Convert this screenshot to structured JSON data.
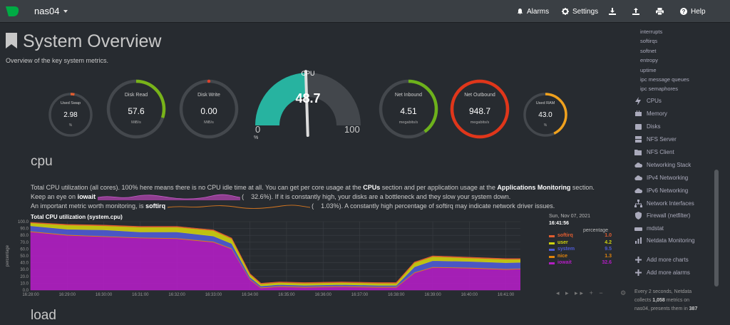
{
  "navbar": {
    "host": "nas04",
    "buttons": [
      {
        "label": "Alarms",
        "icon": "bell-icon"
      },
      {
        "label": "Settings",
        "icon": "gear-icon"
      },
      {
        "label": "",
        "icon": "download-icon"
      },
      {
        "label": "",
        "icon": "upload-icon"
      },
      {
        "label": "",
        "icon": "print-icon"
      },
      {
        "label": "Help",
        "icon": "question-icon"
      }
    ]
  },
  "header": {
    "title": "System Overview",
    "subtitle": "Overview of the key system metrics."
  },
  "gauges": [
    {
      "name": "used-swap",
      "title": "Used Swap",
      "value": "2.98",
      "unit": "%",
      "fraction": 0.03,
      "color": "#e05d30"
    },
    {
      "name": "disk-read",
      "title": "Disk Read",
      "value": "57.6",
      "unit": "MiB/s",
      "fraction": 0.3,
      "color": "#78b319"
    },
    {
      "name": "disk-write",
      "title": "Disk Write",
      "value": "0.00",
      "unit": "MiB/s",
      "fraction": 0.0,
      "color": "#e0402a"
    },
    {
      "name": "net-inbound",
      "title": "Net Inbound",
      "value": "4.51",
      "unit": "megabits/s",
      "fraction": 0.4,
      "color": "#6db21b"
    },
    {
      "name": "net-outbound",
      "title": "Net Outbound",
      "value": "948.7",
      "unit": "megabits/s",
      "fraction": 1.0,
      "color": "#e0361a"
    },
    {
      "name": "used-ram",
      "title": "Used RAM",
      "value": "43.0",
      "unit": "%",
      "fraction": 0.43,
      "color": "#f0a11d"
    }
  ],
  "cpu_gauge": {
    "title": "CPU",
    "value": "48.7",
    "min": "0",
    "max": "100",
    "unit": "%",
    "fraction": 0.487,
    "color": "#27b3a0"
  },
  "section": {
    "title": "cpu",
    "next_title": "load",
    "desc1": "Total CPU utilization (all cores). 100% here means there is no CPU idle time at all. You can get per core usage at the ",
    "desc1_link1": "CPUs",
    "desc1_mid": " section and per application usage at the ",
    "desc1_link2": "Applications Monitoring",
    "desc1_end": " section.",
    "desc2_pre": "Keep an eye on ",
    "desc2_key": "iowait",
    "desc2_val": "32.6%",
    "desc2_post": "). If it is constantly high, your disks are a bottleneck and they slow your system down.",
    "desc3_pre": "An important metric worth monitoring, is ",
    "desc3_key": "softirq",
    "desc3_val": "1.03%",
    "desc3_post": "). A constantly high percentage of softirq may indicate network driver issues.",
    "open_paren": "("
  },
  "chart": {
    "title": "Total CPU utilization (system.cpu)",
    "date": "Sun, Nov 07, 2021",
    "time": "16:41:56",
    "units": "percentage",
    "ylabel": "percentage"
  },
  "chart_data": {
    "type": "area",
    "title": "Total CPU utilization (system.cpu)",
    "ylabel": "percentage",
    "ylim": [
      0,
      100
    ],
    "yticks": [
      "100.0",
      "90.0",
      "80.0",
      "70.0",
      "60.0",
      "50.0",
      "40.0",
      "30.0",
      "20.0",
      "10.0",
      "0.0"
    ],
    "xticks": [
      "16:28:00",
      "16:29:00",
      "16:30:00",
      "16:31:00",
      "16:32:00",
      "16:33:00",
      "16:34:00",
      "16:35:00",
      "16:36:00",
      "16:37:00",
      "16:38:00",
      "16:39:00",
      "16:40:00",
      "16:41:00"
    ],
    "x_minutes": [
      0,
      1,
      2,
      3,
      4,
      5,
      5.5,
      6,
      6.3,
      6.8,
      7.5,
      8.5,
      9.5,
      10.0,
      10.5,
      11,
      12,
      13,
      13.7
    ],
    "series": [
      {
        "name": "iowait",
        "color": "#b31ec4",
        "values": [
          85,
          80,
          78,
          76,
          75,
          70,
          60,
          15,
          3,
          5,
          4,
          5,
          4,
          4,
          25,
          33,
          32,
          30,
          31
        ]
      },
      {
        "name": "nice",
        "color": "#e0830c",
        "values": [
          1,
          1,
          1,
          1,
          1,
          1,
          1,
          1,
          1,
          1,
          1,
          1,
          1,
          1,
          1,
          1,
          1,
          1,
          1
        ]
      },
      {
        "name": "system",
        "color": "#4f5bd5",
        "values": [
          8,
          8,
          9,
          8,
          9,
          8,
          7,
          3,
          2,
          2,
          2,
          2,
          2,
          2,
          8,
          9,
          9,
          9,
          9
        ]
      },
      {
        "name": "user",
        "color": "#cfd10e",
        "values": [
          4,
          6,
          6,
          7,
          7,
          8,
          7,
          4,
          3,
          3,
          3,
          3,
          3,
          3,
          6,
          6,
          5,
          5,
          4
        ]
      },
      {
        "name": "softirq",
        "color": "#e05d30",
        "values": [
          1,
          1,
          1,
          1,
          1,
          1,
          1,
          1,
          1,
          1,
          1,
          1,
          1,
          1,
          1,
          1,
          1,
          1,
          1
        ]
      }
    ],
    "legend": [
      {
        "name": "softirq",
        "value": "1.0",
        "color": "#e05d30"
      },
      {
        "name": "user",
        "value": "4.2",
        "color": "#cfd10e"
      },
      {
        "name": "system",
        "value": "9.5",
        "color": "#4f5bd5"
      },
      {
        "name": "nice",
        "value": "1.3",
        "color": "#e0830c"
      },
      {
        "name": "iowait",
        "value": "32.6",
        "color": "#b31ec4"
      }
    ]
  },
  "sidebar": {
    "subitems": [
      "interrupts",
      "softirqs",
      "softnet",
      "entropy",
      "uptime",
      "ipc message queues",
      "ipc semaphores"
    ],
    "items": [
      {
        "label": "CPUs",
        "icon": "bolt-icon"
      },
      {
        "label": "Memory",
        "icon": "memory-icon"
      },
      {
        "label": "Disks",
        "icon": "disk-icon"
      },
      {
        "label": "NFS Server",
        "icon": "server-icon"
      },
      {
        "label": "NFS Client",
        "icon": "folder-icon"
      },
      {
        "label": "Networking Stack",
        "icon": "cloud-icon"
      },
      {
        "label": "IPv4 Networking",
        "icon": "cloud-icon"
      },
      {
        "label": "IPv6 Networking",
        "icon": "cloud-icon"
      },
      {
        "label": "Network Interfaces",
        "icon": "network-icon"
      },
      {
        "label": "Firewall (netfilter)",
        "icon": "shield-icon"
      },
      {
        "label": "mdstat",
        "icon": "hdd-icon"
      },
      {
        "label": "Netdata Monitoring",
        "icon": "chart-icon"
      },
      {
        "label": "Add more charts",
        "icon": "plus-icon"
      },
      {
        "label": "Add more alarms",
        "icon": "plus-icon"
      }
    ],
    "foot1": "Every 2 seconds, Netdata",
    "foot2_pre": "collects ",
    "foot2_num": "1,058",
    "foot2_post": " metrics on",
    "foot3_pre": "nas04, presents them in ",
    "foot3_num": "387"
  }
}
